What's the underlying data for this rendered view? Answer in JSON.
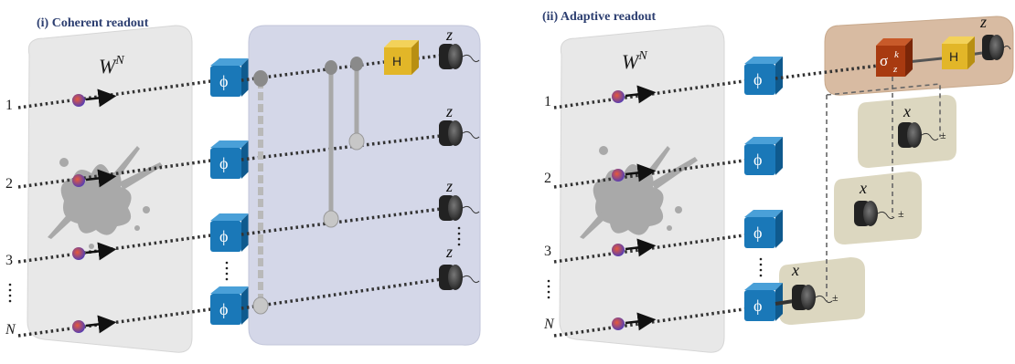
{
  "panels": {
    "left_title": "(i) Coherent readout",
    "right_title": "(ii) Adaptive readout"
  },
  "wn": {
    "base": "W",
    "sup": "N"
  },
  "rows": [
    "1",
    "2",
    "3",
    "N"
  ],
  "gates": {
    "phi": "ϕ",
    "hadamard": "H",
    "sigma": "σ",
    "sigma_sup": "k",
    "sigma_sub": "z"
  },
  "meas": {
    "z": "z",
    "x": "x",
    "pm": "±"
  },
  "colors": {
    "phi_box": "#1a78b8",
    "h_box": "#e2b628",
    "sigma_box": "#a83a10",
    "coherent_bg": "#d4d7e8",
    "adaptive_bg": "#d8bba2",
    "xmeas_bg": "#dcd7c0",
    "sensor_plane": "#e6e6e6"
  }
}
